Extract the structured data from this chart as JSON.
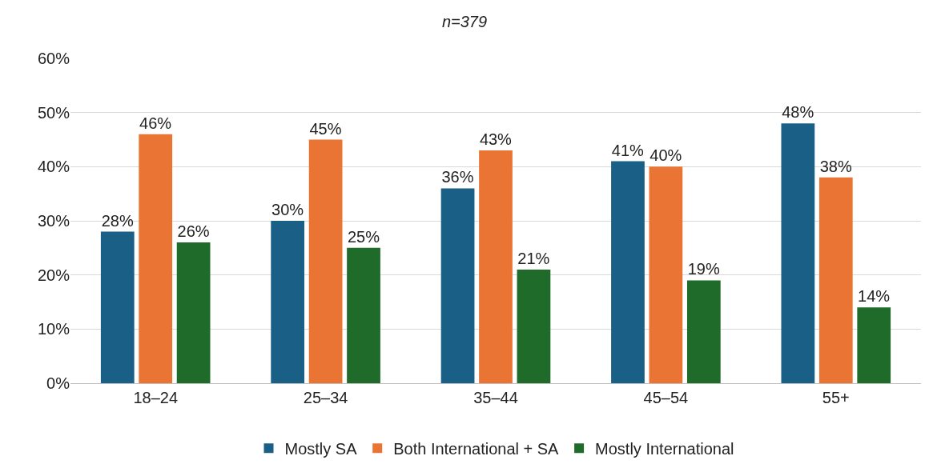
{
  "chart_data": {
    "type": "bar",
    "title": "n=379",
    "categories": [
      "18–24",
      "25–34",
      "35–44",
      "45–54",
      "55+"
    ],
    "series": [
      {
        "name": "Mostly SA",
        "color": "#1a5f85",
        "values": [
          28,
          30,
          36,
          41,
          48
        ],
        "value_labels": [
          "28%",
          "30%",
          "36%",
          "41%",
          "48%"
        ]
      },
      {
        "name": "Both International + SA",
        "color": "#ea7434",
        "values": [
          46,
          45,
          43,
          40,
          38
        ],
        "value_labels": [
          "46%",
          "45%",
          "43%",
          "40%",
          "38%"
        ]
      },
      {
        "name": "Mostly International",
        "color": "#1e6b2a",
        "values": [
          26,
          25,
          21,
          19,
          14
        ],
        "value_labels": [
          "26%",
          "25%",
          "21%",
          "19%",
          "14%"
        ]
      }
    ],
    "ylim": [
      0,
      60
    ],
    "yticks": [
      {
        "value": 0,
        "label": "0%"
      },
      {
        "value": 10,
        "label": "10%"
      },
      {
        "value": 20,
        "label": "20%"
      },
      {
        "value": 30,
        "label": "30%"
      },
      {
        "value": 40,
        "label": "40%"
      },
      {
        "value": 50,
        "label": "50%"
      },
      {
        "value": 60,
        "label": "60%"
      }
    ],
    "grid": "y",
    "legend": "bottom"
  }
}
